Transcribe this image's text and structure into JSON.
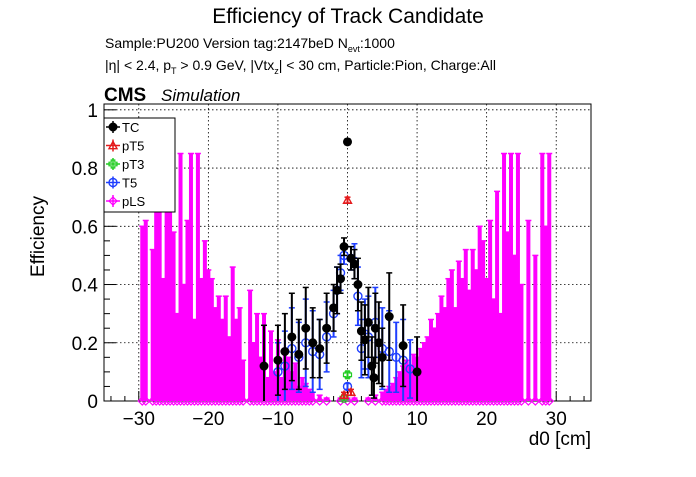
{
  "header": {
    "title": "Efficiency of Track Candidate",
    "info_line1_a": "Sample:PU200   Version tag:2147beD  N",
    "info_line1_sub": "evt",
    "info_line1_b": ":1000",
    "info_line2_a": "|η| < 2.4, p",
    "info_line2_sub1": "T",
    "info_line2_b": " > 0.9 GeV, |Vtx",
    "info_line2_sub2": "z",
    "info_line2_c": "| < 30 cm, Particle:Pion, Charge:All",
    "cms_label": "CMS",
    "simulation_label": "Simulation"
  },
  "colors": {
    "TC": "#000000",
    "pT5": "#e41a1c",
    "pT3": "#22cc22",
    "T5": "#1f3fff",
    "pLS": "#ff00ff"
  },
  "chart_data": {
    "type": "scatter",
    "title": "Efficiency of Track Candidate",
    "xlabel": "d0 [cm]",
    "ylabel": "Efficiency",
    "xlim": [
      -35,
      35
    ],
    "ylim": [
      0,
      1.02
    ],
    "xticks": [
      -30,
      -20,
      -10,
      0,
      10,
      20,
      30
    ],
    "xtick_labels": [
      "−30",
      "−20",
      "−10",
      "0",
      "10",
      "20",
      "30"
    ],
    "yticks": [
      0,
      0.2,
      0.4,
      0.6,
      0.8,
      1
    ],
    "ytick_labels": [
      "0",
      "0.2",
      "0.4",
      "0.6",
      "0.8",
      "1"
    ],
    "grid": true,
    "legend_position": "top-left",
    "series": [
      {
        "name": "TC",
        "marker": "filled-circle",
        "points": [
          [
            0,
            0.89,
            0.01
          ],
          [
            -0.5,
            0.53,
            0.03
          ],
          [
            0.5,
            0.49,
            0.04
          ],
          [
            -1,
            0.42,
            0.05
          ],
          [
            1,
            0.47,
            0.05
          ],
          [
            -1.5,
            0.38,
            0.08
          ],
          [
            1.5,
            0.4,
            0.09
          ],
          [
            2,
            0.24,
            0.1
          ],
          [
            2.5,
            0.21,
            0.12
          ],
          [
            3,
            0.27,
            0.12
          ],
          [
            3.5,
            0.12,
            0.1
          ],
          [
            4,
            0.25,
            0.12
          ],
          [
            4.5,
            0.2,
            0.14
          ],
          [
            5,
            0.15,
            0.1
          ],
          [
            6,
            0.29,
            0.15
          ],
          [
            -2,
            0.32,
            0.08
          ],
          [
            -3,
            0.25,
            0.12
          ],
          [
            -4,
            0.18,
            0.1
          ],
          [
            -5,
            0.2,
            0.12
          ],
          [
            -6,
            0.25,
            0.14
          ],
          [
            -7,
            0.16,
            0.12
          ],
          [
            -8,
            0.22,
            0.15
          ],
          [
            -9,
            0.17,
            0.13
          ],
          [
            -10,
            0.14,
            0.12
          ],
          [
            -12,
            0.12,
            0.14
          ],
          [
            8,
            0.19,
            0.14
          ],
          [
            10,
            0.1,
            0.12
          ],
          [
            3.8,
            0.08,
            0.07
          ]
        ]
      },
      {
        "name": "pT5",
        "marker": "open-triangle",
        "points": [
          [
            0,
            0.69,
            0.01
          ],
          [
            -0.5,
            0.02,
            0.01
          ],
          [
            0.5,
            0.03,
            0.01
          ]
        ]
      },
      {
        "name": "pT3",
        "marker": "open-cross",
        "points": [
          [
            0,
            0.09,
            0.01
          ],
          [
            -0.5,
            0.01,
            0.01
          ]
        ]
      },
      {
        "name": "T5",
        "marker": "open-circle",
        "points": [
          [
            0,
            0.05,
            0.01
          ],
          [
            -0.5,
            0.5,
            0.03
          ],
          [
            0.5,
            0.49,
            0.04
          ],
          [
            -1,
            0.44,
            0.06
          ],
          [
            1,
            0.48,
            0.06
          ],
          [
            -1.5,
            0.38,
            0.08
          ],
          [
            1.5,
            0.36,
            0.1
          ],
          [
            2,
            0.18,
            0.1
          ],
          [
            2.5,
            0.23,
            0.12
          ],
          [
            3,
            0.22,
            0.14
          ],
          [
            4,
            0.27,
            0.12
          ],
          [
            5,
            0.18,
            0.14
          ],
          [
            6,
            0.17,
            0.14
          ],
          [
            -2,
            0.3,
            0.08
          ],
          [
            -3,
            0.22,
            0.12
          ],
          [
            -4,
            0.16,
            0.12
          ],
          [
            -5,
            0.17,
            0.14
          ],
          [
            -6,
            0.2,
            0.15
          ],
          [
            -7,
            0.15,
            0.12
          ],
          [
            -8,
            0.18,
            0.14
          ],
          [
            -9,
            0.12,
            0.12
          ],
          [
            -10,
            0.1,
            0.1
          ],
          [
            7,
            0.15,
            0.12
          ],
          [
            8,
            0.14,
            0.14
          ],
          [
            9,
            0.11,
            0.1
          ]
        ]
      },
      {
        "name": "pLS",
        "marker": "open-diamond",
        "points": [
          [
            -29.5,
            0.0,
            0.6
          ],
          [
            -29,
            0.0,
            0.62
          ],
          [
            -28,
            0.0,
            0.52
          ],
          [
            -27.5,
            0.0,
            0.85
          ],
          [
            -27,
            0.0,
            0.68
          ],
          [
            -26.5,
            0.0,
            0.42
          ],
          [
            -26,
            0.0,
            0.72
          ],
          [
            -25.5,
            0.0,
            0.85
          ],
          [
            -25,
            0.0,
            0.58
          ],
          [
            -24.5,
            0.0,
            0.3
          ],
          [
            -24,
            0.0,
            0.85
          ],
          [
            -23.5,
            0.0,
            0.4
          ],
          [
            -23,
            0.0,
            0.62
          ],
          [
            -22.5,
            0.0,
            0.85
          ],
          [
            -22,
            0.0,
            0.28
          ],
          [
            -21.5,
            0.0,
            0.85
          ],
          [
            -21,
            0.0,
            0.42
          ],
          [
            -20.5,
            0.0,
            0.55
          ],
          [
            -20,
            0.0,
            0.45
          ],
          [
            -19.5,
            0.0,
            0.42
          ],
          [
            -19,
            0.0,
            0.32
          ],
          [
            -18.5,
            0.0,
            0.36
          ],
          [
            -18,
            0.0,
            0.28
          ],
          [
            -17.5,
            0.0,
            0.36
          ],
          [
            -17,
            0.0,
            0.22
          ],
          [
            -16.5,
            0.0,
            0.46
          ],
          [
            -16,
            0.0,
            0.28
          ],
          [
            -15.5,
            0.0,
            0.32
          ],
          [
            -15,
            0.0,
            0.14
          ],
          [
            -14,
            0.0,
            0.38
          ],
          [
            -13.5,
            0.0,
            0.2
          ],
          [
            -13,
            0.0,
            0.3
          ],
          [
            -12.5,
            0.0,
            0.15
          ],
          [
            -12,
            0.0,
            0.3
          ],
          [
            -11.5,
            0.0,
            0.08
          ],
          [
            -11,
            0.0,
            0.24
          ],
          [
            -10.5,
            0.0,
            0.1
          ],
          [
            -10,
            0.0,
            0.21
          ],
          [
            -9.5,
            0.0,
            0.08
          ],
          [
            -9,
            0.0,
            0.18
          ],
          [
            -8.5,
            0.0,
            0.15
          ],
          [
            -8,
            0.0,
            0.1
          ],
          [
            -7.5,
            0.0,
            0.13
          ],
          [
            -7,
            0.0,
            0.05
          ],
          [
            -6.5,
            0.0,
            0.08
          ],
          [
            -6,
            0.0,
            0.06
          ],
          [
            -5.5,
            0.0,
            0.04
          ],
          [
            -5,
            0.0,
            0.03
          ],
          [
            -4,
            0.0,
            0.02
          ],
          [
            -3,
            0.0,
            0.01
          ],
          [
            -1,
            0.0,
            0.01
          ],
          [
            0,
            0.0,
            0.01
          ],
          [
            1,
            0.0,
            0.01
          ],
          [
            3,
            0.0,
            0.01
          ],
          [
            4,
            0.0,
            0.02
          ],
          [
            5,
            0.0,
            0.03
          ],
          [
            5.5,
            0.0,
            0.04
          ],
          [
            6,
            0.0,
            0.05
          ],
          [
            6.5,
            0.0,
            0.06
          ],
          [
            7,
            0.0,
            0.08
          ],
          [
            7.5,
            0.0,
            0.1
          ],
          [
            8,
            0.0,
            0.12
          ],
          [
            8.5,
            0.0,
            0.14
          ],
          [
            9,
            0.0,
            0.12
          ],
          [
            9.5,
            0.0,
            0.16
          ],
          [
            10,
            0.0,
            0.15
          ],
          [
            10.5,
            0.0,
            0.18
          ],
          [
            11,
            0.0,
            0.2
          ],
          [
            11.5,
            0.0,
            0.22
          ],
          [
            12,
            0.0,
            0.28
          ],
          [
            12.5,
            0.0,
            0.25
          ],
          [
            13,
            0.0,
            0.3
          ],
          [
            13.5,
            0.0,
            0.36
          ],
          [
            14,
            0.0,
            0.32
          ],
          [
            14.5,
            0.0,
            0.42
          ],
          [
            15,
            0.0,
            0.45
          ],
          [
            15.5,
            0.0,
            0.32
          ],
          [
            16,
            0.0,
            0.48
          ],
          [
            16.5,
            0.0,
            0.42
          ],
          [
            17,
            0.0,
            0.52
          ],
          [
            17.5,
            0.0,
            0.38
          ],
          [
            18,
            0.0,
            0.52
          ],
          [
            18.5,
            0.0,
            0.45
          ],
          [
            19,
            0.0,
            0.6
          ],
          [
            19.5,
            0.0,
            0.55
          ],
          [
            20,
            0.0,
            0.42
          ],
          [
            20.5,
            0.0,
            0.62
          ],
          [
            21,
            0.0,
            0.35
          ],
          [
            21.5,
            0.0,
            0.72
          ],
          [
            22,
            0.0,
            0.3
          ],
          [
            22.5,
            0.0,
            0.85
          ],
          [
            23,
            0.0,
            0.58
          ],
          [
            23.5,
            0.0,
            0.85
          ],
          [
            24,
            0.0,
            0.5
          ],
          [
            24.5,
            0.0,
            0.85
          ],
          [
            25,
            0.0,
            0.4
          ],
          [
            26,
            0.0,
            0.62
          ],
          [
            27,
            0.0,
            0.5
          ],
          [
            28,
            0.0,
            0.85
          ],
          [
            28.5,
            0.0,
            0.6
          ],
          [
            29,
            0.0,
            0.85
          ]
        ]
      }
    ]
  }
}
